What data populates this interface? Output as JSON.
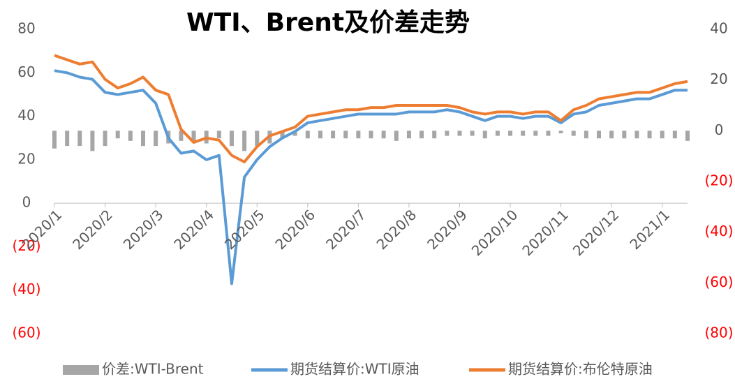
{
  "chart_data": {
    "type": "line",
    "title": "WTI、Brent及价差走势",
    "categories": [
      "2020/1",
      null,
      null,
      null,
      "2020/2",
      null,
      null,
      null,
      "2020/3",
      null,
      null,
      null,
      "2020/4",
      null,
      null,
      null,
      "2020/5",
      null,
      null,
      null,
      "2020/6",
      null,
      null,
      null,
      "2020/7",
      null,
      null,
      null,
      "2020/8",
      null,
      null,
      null,
      "2020/9",
      null,
      null,
      null,
      "2020/10",
      null,
      null,
      null,
      "2020/11",
      null,
      null,
      null,
      "2020/12",
      null,
      null,
      null,
      "2021/1",
      null,
      null
    ],
    "series": [
      {
        "name": "价差:WTI-Brent",
        "type": "bar",
        "axis": "y2",
        "color": "#a6a6a6",
        "values": [
          -7,
          -6,
          -6,
          -8,
          -6,
          -3,
          -4,
          -6,
          -6,
          -5,
          -4,
          -4,
          -5,
          -3,
          -6,
          -8,
          -6,
          -5,
          -3,
          -2,
          -3,
          -3,
          -3,
          -3,
          -3,
          -3,
          -3,
          -4,
          -3,
          -3,
          -3,
          -2,
          -2,
          -2,
          -3,
          -2,
          -2,
          -2,
          -2,
          -2,
          -1,
          -2,
          -3,
          -3,
          -3,
          -3,
          -3,
          -3,
          -3,
          -3,
          -4
        ]
      },
      {
        "name": "期货结算价:WTI原油",
        "type": "line",
        "color": "#5b9bd5",
        "values": [
          61,
          60,
          58,
          57,
          51,
          50,
          51,
          52,
          46,
          30,
          23,
          24,
          20,
          22,
          -37,
          12,
          20,
          26,
          30,
          33,
          37,
          38,
          39,
          40,
          41,
          41,
          41,
          41,
          42,
          42,
          42,
          43,
          42,
          40,
          38,
          40,
          40,
          39,
          40,
          40,
          37,
          41,
          42,
          45,
          46,
          47,
          48,
          48,
          50,
          52,
          52
        ]
      },
      {
        "name": "期货结算价:布伦特原油",
        "type": "line",
        "color": "#ed7d31",
        "values": [
          68,
          66,
          64,
          65,
          57,
          53,
          55,
          58,
          52,
          50,
          34,
          28,
          30,
          29,
          22,
          19,
          26,
          31,
          33,
          35,
          40,
          41,
          42,
          43,
          43,
          44,
          44,
          45,
          45,
          45,
          45,
          45,
          44,
          42,
          41,
          42,
          42,
          41,
          42,
          42,
          38,
          43,
          45,
          48,
          49,
          50,
          51,
          51,
          53,
          55,
          56
        ]
      }
    ],
    "ylim": [
      -60,
      80
    ],
    "yticks": [
      {
        "value": -60,
        "label": "(60)"
      },
      {
        "value": -40,
        "label": "(40)"
      },
      {
        "value": -20,
        "label": "(20)"
      },
      0,
      20,
      40,
      60,
      80
    ],
    "y2lim": [
      -80,
      40
    ],
    "y2ticks": [
      {
        "value": -80,
        "label": "(80)"
      },
      {
        "value": -60,
        "label": "(60)"
      },
      {
        "value": -40,
        "label": "(40)"
      },
      {
        "value": -20,
        "label": "(20)"
      },
      0,
      20,
      40
    ],
    "negative_tick_color": "#ff0000",
    "legend": "bottom"
  }
}
